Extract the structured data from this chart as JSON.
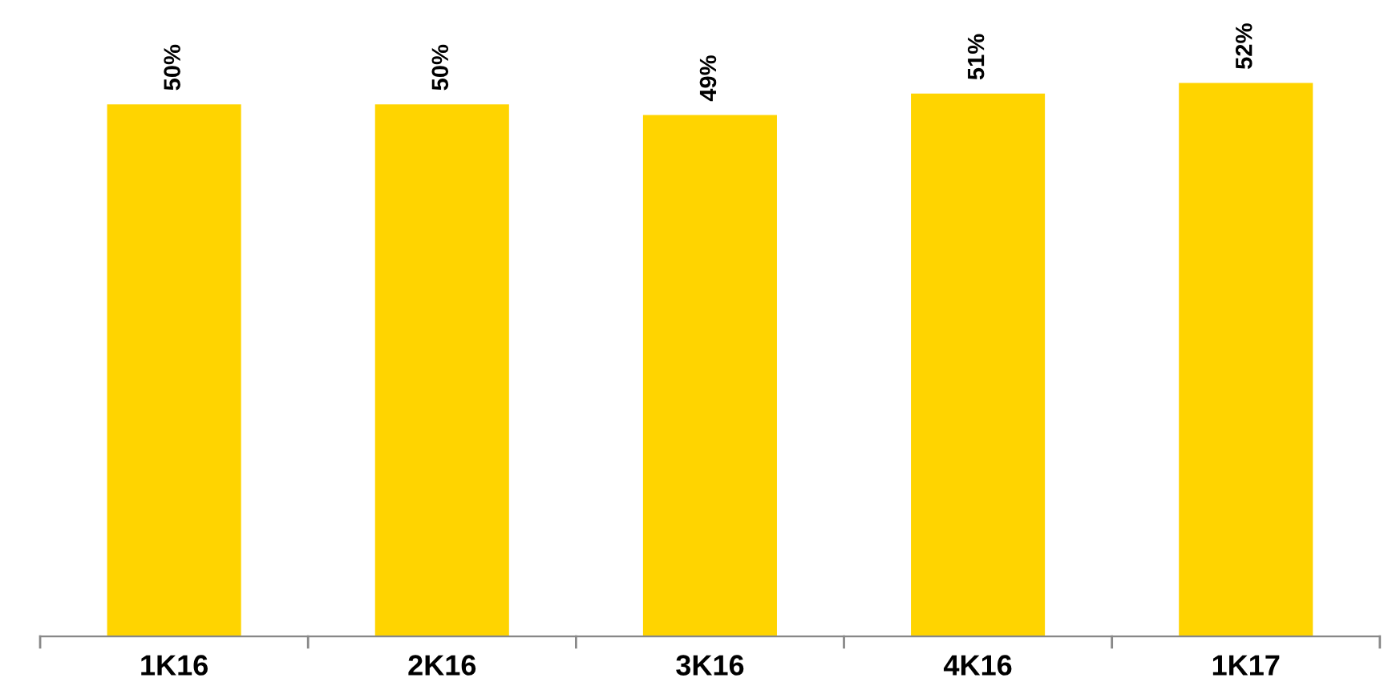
{
  "chart_data": {
    "type": "bar",
    "categories": [
      "1K16",
      "2K16",
      "3K16",
      "4K16",
      "1K17"
    ],
    "values": [
      50,
      50,
      49,
      51,
      52
    ],
    "value_labels": [
      "50%",
      "50%",
      "49%",
      "51%",
      "52%"
    ],
    "color": "#ffd400",
    "grid": false,
    "legend": false
  }
}
